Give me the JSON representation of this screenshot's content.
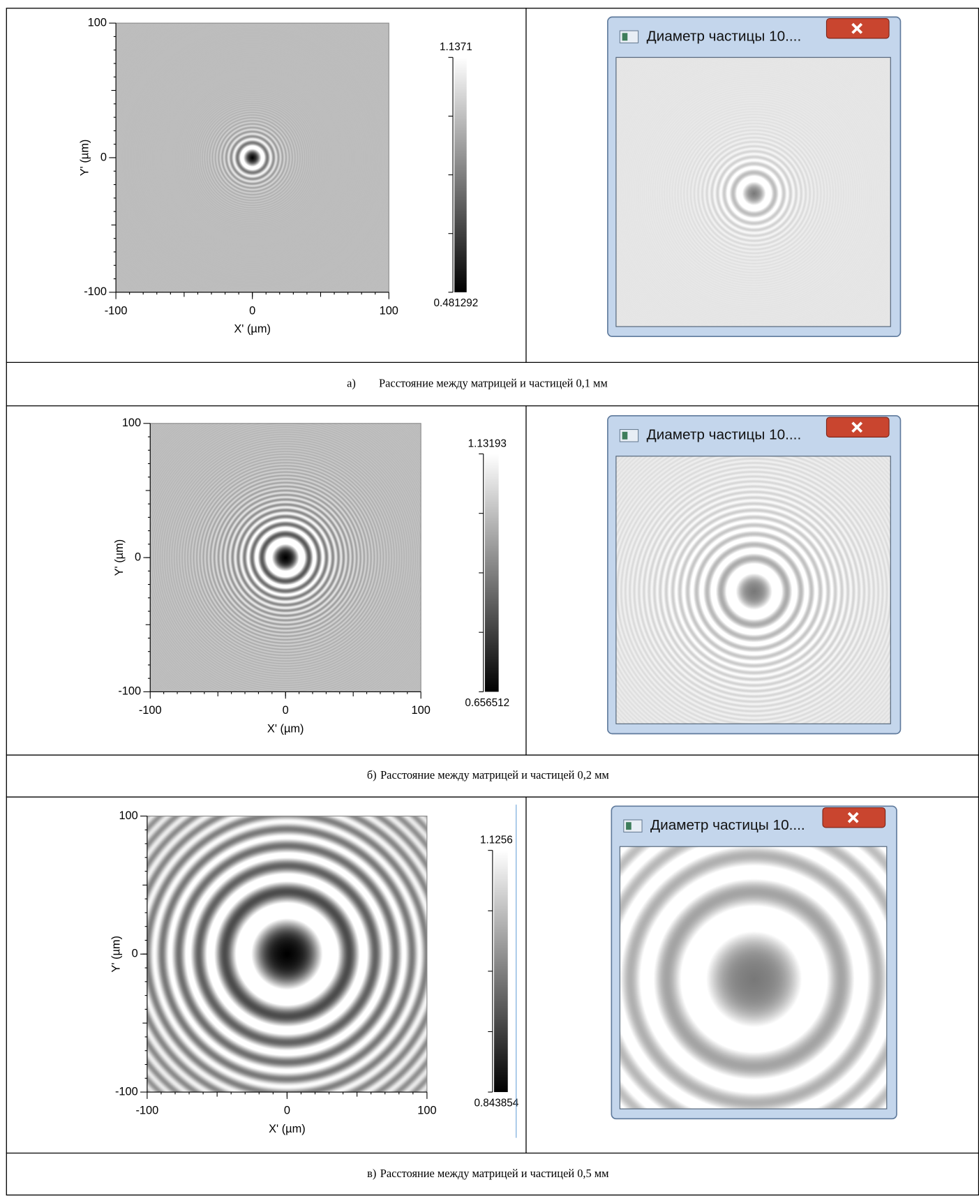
{
  "rows": [
    {
      "plot": {
        "x_label": "X' (µm)",
        "y_label": "Y' (µm)",
        "xticks": [
          -100,
          0,
          100
        ],
        "yticks": [
          -100,
          0,
          100
        ],
        "colorbar": {
          "max": 1.1371,
          "min": 0.481292
        }
      },
      "window": {
        "title": "Диаметр частицы 10...."
      },
      "caption": {
        "label": "а)",
        "text": "Расстояние между матрицей и частицей 0,1 мм"
      }
    },
    {
      "plot": {
        "x_label": "X' (µm)",
        "y_label": "Y' (µm)",
        "xticks": [
          -100,
          0,
          100
        ],
        "yticks": [
          -100,
          0,
          100
        ],
        "colorbar": {
          "max": 1.13193,
          "min": 0.656512
        }
      },
      "window": {
        "title": "Диаметр частицы 10...."
      },
      "caption": {
        "label": "б)",
        "text": "Расстояние между матрицей и частицей 0,2 мм"
      }
    },
    {
      "plot": {
        "x_label": "X' (µm)",
        "y_label": "Y' (µm)",
        "xticks": [
          -100,
          0,
          100
        ],
        "yticks": [
          -100,
          0,
          100
        ],
        "colorbar": {
          "max": 1.1256,
          "min": 0.843854
        }
      },
      "window": {
        "title": "Диаметр частицы 10...."
      },
      "caption": {
        "label": "в)",
        "text": "Расстояние между матрицей и частицей 0,5 мм"
      }
    }
  ]
}
